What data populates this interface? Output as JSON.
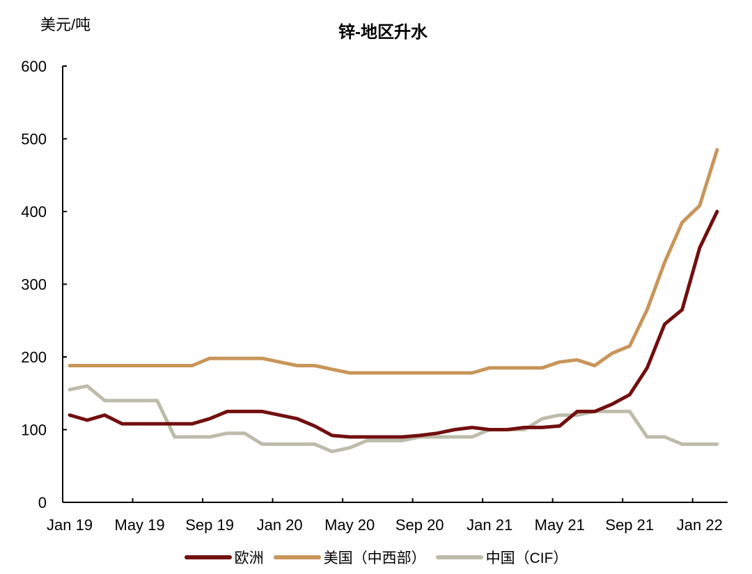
{
  "header": {
    "unit_label": "美元/吨",
    "title": "锌-地区升水"
  },
  "chart_data": {
    "type": "line",
    "title": "锌-地区升水",
    "ylabel": "美元/吨",
    "xlabel": "",
    "ylim": [
      0,
      600
    ],
    "yticks": [
      0,
      100,
      200,
      300,
      400,
      500,
      600
    ],
    "xtick_labels": [
      "Jan 19",
      "May 19",
      "Sep 19",
      "Jan 20",
      "May 20",
      "Sep 20",
      "Jan 21",
      "May 21",
      "Sep 21",
      "Jan 22"
    ],
    "grid": false,
    "legend_position": "bottom",
    "x": [
      "Jan 19",
      "Feb 19",
      "Mar 19",
      "Apr 19",
      "May 19",
      "Jun 19",
      "Jul 19",
      "Aug 19",
      "Sep 19",
      "Oct 19",
      "Nov 19",
      "Dec 19",
      "Jan 20",
      "Feb 20",
      "Mar 20",
      "Apr 20",
      "May 20",
      "Jun 20",
      "Jul 20",
      "Aug 20",
      "Sep 20",
      "Oct 20",
      "Nov 20",
      "Dec 20",
      "Jan 21",
      "Feb 21",
      "Mar 21",
      "Apr 21",
      "May 21",
      "Jun 21",
      "Jul 21",
      "Aug 21",
      "Sep 21",
      "Oct 21",
      "Nov 21",
      "Dec 21",
      "Jan 22",
      "Feb 22"
    ],
    "series": [
      {
        "name": "欧洲",
        "color": "#720f0f",
        "values": [
          120,
          113,
          120,
          108,
          108,
          108,
          108,
          108,
          115,
          125,
          125,
          125,
          120,
          115,
          105,
          92,
          90,
          90,
          90,
          90,
          92,
          95,
          100,
          103,
          100,
          100,
          103,
          103,
          105,
          125,
          125,
          135,
          148,
          185,
          245,
          265,
          350,
          400
        ]
      },
      {
        "name": "美国（中西部）",
        "color": "#c8955a",
        "values": [
          188,
          188,
          188,
          188,
          188,
          188,
          188,
          188,
          198,
          198,
          198,
          198,
          193,
          188,
          188,
          183,
          178,
          178,
          178,
          178,
          178,
          178,
          178,
          178,
          185,
          185,
          185,
          185,
          193,
          196,
          188,
          205,
          215,
          265,
          330,
          385,
          408,
          485
        ]
      },
      {
        "name": "中国（CIF）",
        "color": "#bcbcaa",
        "values": [
          155,
          160,
          140,
          140,
          140,
          140,
          90,
          90,
          90,
          95,
          95,
          80,
          80,
          80,
          80,
          70,
          75,
          85,
          85,
          85,
          90,
          90,
          90,
          90,
          100,
          100,
          100,
          115,
          120,
          120,
          125,
          125,
          125,
          90,
          90,
          80,
          80,
          80
        ]
      }
    ]
  },
  "legend": {
    "items": [
      {
        "label": "欧洲",
        "color": "#720f0f"
      },
      {
        "label": "美国（中西部）",
        "color": "#c8955a"
      },
      {
        "label": "中国（CIF）",
        "color": "#bcbcaa"
      }
    ]
  }
}
